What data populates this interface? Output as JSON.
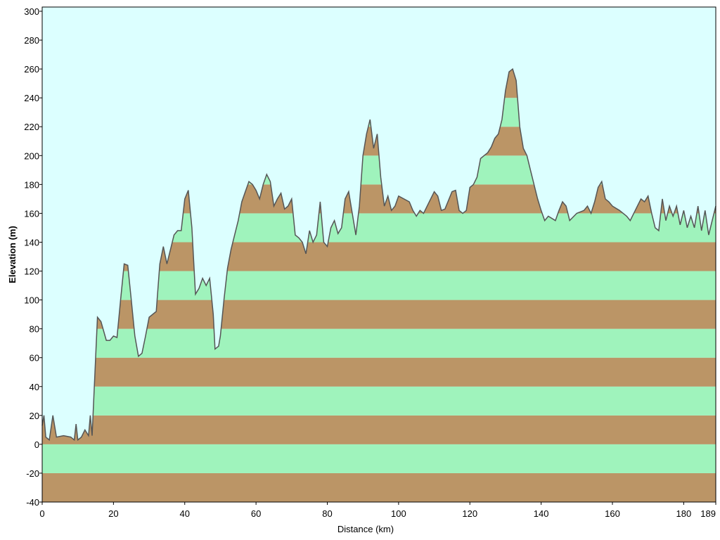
{
  "chart_data": {
    "type": "area",
    "xlabel": "Distance   (km)",
    "ylabel": "Elevation (m)",
    "x": [
      0,
      0.5,
      1,
      2,
      3,
      4,
      6,
      8,
      9,
      9.5,
      10,
      11,
      12,
      13,
      13.5,
      14,
      15,
      15.5,
      16.5,
      18,
      19,
      20,
      21,
      22,
      23,
      24,
      25,
      26,
      27,
      28,
      29,
      30,
      32,
      33,
      34,
      35,
      36,
      37,
      38,
      39,
      40,
      41,
      42,
      43,
      44,
      45,
      46,
      47,
      48,
      48.5,
      49.5,
      50,
      51,
      52,
      53,
      54,
      55,
      56,
      57,
      58,
      59,
      60,
      61,
      62,
      63,
      64,
      65,
      66,
      67,
      68,
      69,
      70,
      71,
      72,
      73,
      74,
      75,
      76,
      77,
      78,
      79,
      80,
      81,
      82,
      83,
      84,
      85,
      86,
      87,
      88,
      89,
      90,
      91,
      92,
      93,
      94,
      95,
      96,
      97,
      98,
      99,
      100,
      103,
      104,
      105,
      106,
      107,
      109,
      110,
      111,
      112,
      113,
      115,
      116,
      117,
      118,
      119,
      120,
      121,
      122,
      123,
      124,
      125,
      126,
      127,
      128,
      129,
      130,
      131,
      132,
      133,
      134,
      135,
      136,
      137,
      138,
      139,
      140,
      141,
      142,
      144,
      145,
      146,
      147,
      148,
      150,
      152,
      153,
      154,
      155,
      156,
      157,
      158,
      159,
      160,
      162,
      164,
      165,
      166,
      167,
      168,
      169,
      170,
      171,
      172,
      173,
      174,
      175,
      176,
      177,
      178,
      179,
      180,
      181,
      182,
      183,
      184,
      185,
      186,
      187,
      188,
      189
    ],
    "values": [
      13,
      20,
      5,
      3,
      20,
      5,
      6,
      5,
      3,
      14,
      3,
      5,
      10,
      6,
      20,
      6,
      60,
      88,
      85,
      72,
      72,
      75,
      74,
      100,
      125,
      124,
      100,
      75,
      61,
      63,
      75,
      88,
      92,
      125,
      137,
      125,
      135,
      145,
      148,
      148,
      170,
      176,
      150,
      104,
      108,
      115,
      110,
      115,
      90,
      66,
      68,
      75,
      100,
      122,
      135,
      145,
      155,
      168,
      175,
      182,
      180,
      176,
      170,
      180,
      187,
      182,
      165,
      170,
      174,
      163,
      165,
      170,
      145,
      143,
      140,
      132,
      148,
      140,
      145,
      168,
      140,
      137,
      150,
      155,
      146,
      150,
      170,
      175,
      160,
      145,
      165,
      200,
      215,
      225,
      205,
      215,
      185,
      165,
      172,
      162,
      165,
      172,
      168,
      162,
      158,
      162,
      160,
      170,
      175,
      172,
      162,
      163,
      175,
      176,
      162,
      160,
      162,
      178,
      180,
      185,
      198,
      200,
      202,
      206,
      212,
      215,
      225,
      245,
      258,
      260,
      252,
      220,
      205,
      200,
      190,
      180,
      170,
      162,
      155,
      158,
      155,
      162,
      168,
      165,
      155,
      160,
      162,
      165,
      160,
      168,
      178,
      182,
      170,
      168,
      165,
      162,
      158,
      155,
      160,
      165,
      170,
      168,
      172,
      160,
      150,
      148,
      170,
      155,
      165,
      158,
      165,
      152,
      162,
      150,
      158,
      150,
      165,
      148,
      162,
      145,
      155,
      165
    ],
    "xlim": [
      0,
      189
    ],
    "ylim": [
      -40,
      300
    ],
    "xticks": [
      0,
      20,
      40,
      60,
      80,
      100,
      120,
      140,
      160,
      180,
      189
    ],
    "yticks": [
      -40,
      -20,
      0,
      20,
      40,
      60,
      80,
      100,
      120,
      140,
      160,
      180,
      200,
      220,
      240,
      260,
      280,
      300
    ],
    "background": "#dcffff",
    "band_colors": [
      "#bb9566",
      "#9ff3bc"
    ],
    "line_color": "#555555"
  }
}
